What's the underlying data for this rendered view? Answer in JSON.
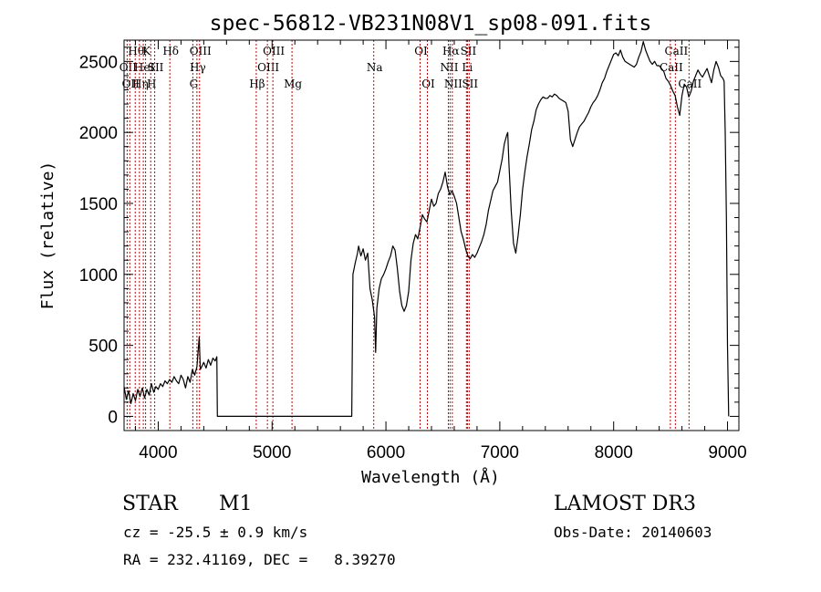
{
  "chart_data": {
    "type": "line",
    "title": "spec-56812-VB231N08V1_sp08-091.fits",
    "xlabel": "Wavelength (Å)",
    "ylabel": "Flux (relative)",
    "xlim": [
      3700,
      9100
    ],
    "ylim": [
      -100,
      2650
    ],
    "xticks": [
      4000,
      5000,
      6000,
      7000,
      8000,
      9000
    ],
    "yticks": [
      0,
      500,
      1000,
      1500,
      2000,
      2500
    ],
    "line_color": "#000000",
    "marker_color": "#cc0000",
    "series": [
      {
        "values": [
          [
            3700,
            210
          ],
          [
            3720,
            120
          ],
          [
            3740,
            180
          ],
          [
            3760,
            90
          ],
          [
            3780,
            160
          ],
          [
            3800,
            110
          ],
          [
            3820,
            190
          ],
          [
            3840,
            140
          ],
          [
            3860,
            200
          ],
          [
            3880,
            130
          ],
          [
            3900,
            190
          ],
          [
            3920,
            150
          ],
          [
            3940,
            230
          ],
          [
            3960,
            170
          ],
          [
            3980,
            210
          ],
          [
            4000,
            190
          ],
          [
            4020,
            230
          ],
          [
            4040,
            210
          ],
          [
            4060,
            250
          ],
          [
            4080,
            230
          ],
          [
            4100,
            260
          ],
          [
            4120,
            240
          ],
          [
            4140,
            280
          ],
          [
            4160,
            250
          ],
          [
            4180,
            230
          ],
          [
            4200,
            290
          ],
          [
            4220,
            260
          ],
          [
            4240,
            200
          ],
          [
            4260,
            280
          ],
          [
            4280,
            240
          ],
          [
            4300,
            330
          ],
          [
            4320,
            290
          ],
          [
            4340,
            350
          ],
          [
            4360,
            560
          ],
          [
            4370,
            330
          ],
          [
            4400,
            380
          ],
          [
            4420,
            340
          ],
          [
            4440,
            400
          ],
          [
            4460,
            360
          ],
          [
            4480,
            410
          ],
          [
            4500,
            390
          ],
          [
            4515,
            420
          ],
          [
            4520,
            0
          ],
          [
            5700,
            0
          ],
          [
            5710,
            1000
          ],
          [
            5730,
            1080
          ],
          [
            5750,
            1150
          ],
          [
            5760,
            1200
          ],
          [
            5780,
            1130
          ],
          [
            5800,
            1180
          ],
          [
            5820,
            1100
          ],
          [
            5840,
            1150
          ],
          [
            5860,
            900
          ],
          [
            5880,
            820
          ],
          [
            5900,
            700
          ],
          [
            5910,
            450
          ],
          [
            5920,
            760
          ],
          [
            5940,
            900
          ],
          [
            5960,
            970
          ],
          [
            5980,
            1000
          ],
          [
            6000,
            1040
          ],
          [
            6020,
            1090
          ],
          [
            6040,
            1130
          ],
          [
            6060,
            1200
          ],
          [
            6080,
            1170
          ],
          [
            6100,
            1040
          ],
          [
            6120,
            880
          ],
          [
            6140,
            780
          ],
          [
            6160,
            740
          ],
          [
            6180,
            780
          ],
          [
            6200,
            880
          ],
          [
            6220,
            1100
          ],
          [
            6240,
            1220
          ],
          [
            6260,
            1280
          ],
          [
            6280,
            1250
          ],
          [
            6300,
            1330
          ],
          [
            6320,
            1420
          ],
          [
            6340,
            1390
          ],
          [
            6360,
            1370
          ],
          [
            6380,
            1450
          ],
          [
            6400,
            1530
          ],
          [
            6420,
            1480
          ],
          [
            6440,
            1500
          ],
          [
            6460,
            1570
          ],
          [
            6480,
            1600
          ],
          [
            6500,
            1650
          ],
          [
            6520,
            1720
          ],
          [
            6540,
            1620
          ],
          [
            6560,
            1560
          ],
          [
            6580,
            1590
          ],
          [
            6600,
            1550
          ],
          [
            6620,
            1500
          ],
          [
            6640,
            1400
          ],
          [
            6660,
            1300
          ],
          [
            6680,
            1250
          ],
          [
            6700,
            1180
          ],
          [
            6720,
            1130
          ],
          [
            6740,
            1110
          ],
          [
            6760,
            1140
          ],
          [
            6780,
            1120
          ],
          [
            6800,
            1150
          ],
          [
            6820,
            1190
          ],
          [
            6840,
            1230
          ],
          [
            6860,
            1280
          ],
          [
            6880,
            1350
          ],
          [
            6900,
            1450
          ],
          [
            6920,
            1520
          ],
          [
            6940,
            1590
          ],
          [
            6960,
            1620
          ],
          [
            6980,
            1650
          ],
          [
            7000,
            1730
          ],
          [
            7020,
            1810
          ],
          [
            7040,
            1920
          ],
          [
            7060,
            1980
          ],
          [
            7070,
            2000
          ],
          [
            7080,
            1780
          ],
          [
            7100,
            1450
          ],
          [
            7120,
            1220
          ],
          [
            7140,
            1150
          ],
          [
            7160,
            1270
          ],
          [
            7180,
            1420
          ],
          [
            7200,
            1600
          ],
          [
            7220,
            1720
          ],
          [
            7240,
            1830
          ],
          [
            7260,
            1920
          ],
          [
            7280,
            2020
          ],
          [
            7300,
            2080
          ],
          [
            7320,
            2160
          ],
          [
            7340,
            2200
          ],
          [
            7360,
            2230
          ],
          [
            7380,
            2250
          ],
          [
            7400,
            2240
          ],
          [
            7420,
            2240
          ],
          [
            7440,
            2260
          ],
          [
            7460,
            2250
          ],
          [
            7480,
            2270
          ],
          [
            7500,
            2260
          ],
          [
            7520,
            2240
          ],
          [
            7540,
            2230
          ],
          [
            7560,
            2220
          ],
          [
            7580,
            2210
          ],
          [
            7600,
            2150
          ],
          [
            7620,
            1950
          ],
          [
            7640,
            1900
          ],
          [
            7660,
            1950
          ],
          [
            7680,
            2000
          ],
          [
            7700,
            2040
          ],
          [
            7720,
            2060
          ],
          [
            7740,
            2080
          ],
          [
            7760,
            2110
          ],
          [
            7780,
            2140
          ],
          [
            7800,
            2180
          ],
          [
            7820,
            2210
          ],
          [
            7840,
            2230
          ],
          [
            7860,
            2260
          ],
          [
            7880,
            2300
          ],
          [
            7900,
            2350
          ],
          [
            7920,
            2380
          ],
          [
            7940,
            2430
          ],
          [
            7960,
            2470
          ],
          [
            7980,
            2510
          ],
          [
            8000,
            2550
          ],
          [
            8020,
            2560
          ],
          [
            8040,
            2540
          ],
          [
            8060,
            2580
          ],
          [
            8080,
            2530
          ],
          [
            8100,
            2500
          ],
          [
            8120,
            2490
          ],
          [
            8140,
            2480
          ],
          [
            8160,
            2470
          ],
          [
            8180,
            2460
          ],
          [
            8200,
            2480
          ],
          [
            8220,
            2530
          ],
          [
            8240,
            2570
          ],
          [
            8260,
            2640
          ],
          [
            8280,
            2580
          ],
          [
            8300,
            2540
          ],
          [
            8320,
            2500
          ],
          [
            8340,
            2480
          ],
          [
            8360,
            2500
          ],
          [
            8380,
            2470
          ],
          [
            8400,
            2470
          ],
          [
            8420,
            2450
          ],
          [
            8440,
            2430
          ],
          [
            8460,
            2380
          ],
          [
            8480,
            2360
          ],
          [
            8500,
            2330
          ],
          [
            8520,
            2290
          ],
          [
            8540,
            2260
          ],
          [
            8560,
            2180
          ],
          [
            8580,
            2120
          ],
          [
            8600,
            2260
          ],
          [
            8620,
            2340
          ],
          [
            8640,
            2320
          ],
          [
            8660,
            2250
          ],
          [
            8680,
            2290
          ],
          [
            8700,
            2360
          ],
          [
            8720,
            2400
          ],
          [
            8740,
            2440
          ],
          [
            8760,
            2410
          ],
          [
            8780,
            2390
          ],
          [
            8800,
            2420
          ],
          [
            8820,
            2450
          ],
          [
            8840,
            2400
          ],
          [
            8860,
            2350
          ],
          [
            8880,
            2440
          ],
          [
            8900,
            2500
          ],
          [
            8920,
            2460
          ],
          [
            8940,
            2400
          ],
          [
            8960,
            2380
          ],
          [
            8970,
            2360
          ],
          [
            8980,
            2000
          ],
          [
            8990,
            1400
          ],
          [
            9000,
            500
          ],
          [
            9010,
            0
          ]
        ]
      }
    ],
    "lines": [
      {
        "x": 3727,
        "row": 1,
        "label": "OII"
      },
      {
        "x": 3750,
        "row": 2,
        "label": "OII"
      },
      {
        "x": 3798,
        "row": 0,
        "label": "Hθ"
      },
      {
        "x": 3835,
        "row": 2,
        "label": "Hη"
      },
      {
        "x": 3869,
        "row": 1,
        "label": "HeI"
      },
      {
        "x": 3889,
        "row": 0,
        "label": "K"
      },
      {
        "x": 3934,
        "row": 2,
        "label": "H"
      },
      {
        "x": 3969,
        "row": 1,
        "label": "SII"
      },
      {
        "x": 4102,
        "row": 0,
        "label": "Hδ"
      },
      {
        "x": 4304,
        "row": 2,
        "label": "G"
      },
      {
        "x": 4340,
        "row": 1,
        "label": "Hγ"
      },
      {
        "x": 4363,
        "row": 0,
        "label": "OIII"
      },
      {
        "x": 4861,
        "row": 2,
        "label": "Hβ"
      },
      {
        "x": 4959,
        "row": 1,
        "label": "OIII"
      },
      {
        "x": 5007,
        "row": 0,
        "label": "OIII"
      },
      {
        "x": 5175,
        "row": 2,
        "label": "Mg"
      },
      {
        "x": 5893,
        "row": 1,
        "label": "Na"
      },
      {
        "x": 6300,
        "row": 0,
        "label": "OI"
      },
      {
        "x": 6364,
        "row": 2,
        "label": "OI"
      },
      {
        "x": 6548,
        "row": 1,
        "label": "NII"
      },
      {
        "x": 6563,
        "row": 0,
        "label": "Hα"
      },
      {
        "x": 6583,
        "row": 2,
        "label": "NII"
      },
      {
        "x": 6707,
        "row": 1,
        "label": "Li"
      },
      {
        "x": 6716,
        "row": 0,
        "label": "SII"
      },
      {
        "x": 6731,
        "row": 2,
        "label": "SII"
      },
      {
        "x": 8498,
        "row": 1,
        "label": "CaII"
      },
      {
        "x": 8542,
        "row": 0,
        "label": "CaII"
      },
      {
        "x": 8662,
        "row": 2,
        "label": "CaII"
      }
    ]
  },
  "info": {
    "object_class": "STAR",
    "subclass": "M1",
    "survey": "LAMOST DR3",
    "redshift": "cz = -25.5 ± 0.9 km/s",
    "obs_date": "Obs-Date: 20140603",
    "coords": "RA = 232.41169, DEC =   8.39270"
  }
}
